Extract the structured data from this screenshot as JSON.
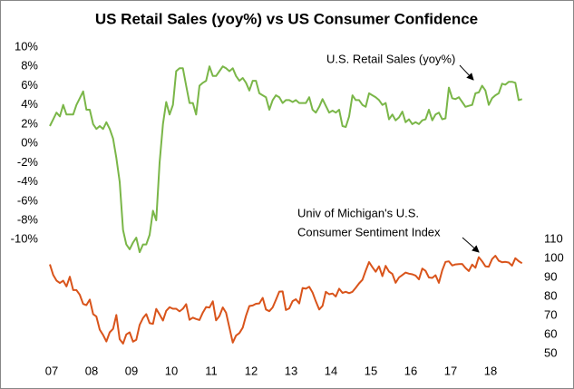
{
  "chart_data": {
    "type": "line",
    "title": "US Retail Sales (yoy%) vs US Consumer Confidence",
    "annotations": [
      "U.S. Retail Sales (yoy%)",
      "Univ of Michigan's U.S.",
      "Consumer Sentiment Index"
    ],
    "x": [
      0,
      1,
      2,
      3,
      4,
      5,
      6,
      7,
      8,
      9,
      10,
      11,
      12,
      13,
      14,
      15,
      16,
      17,
      18,
      19,
      20,
      21,
      22,
      23,
      24,
      25,
      26,
      27,
      28,
      29,
      30,
      31,
      32,
      33,
      34,
      35,
      36,
      37,
      38,
      39,
      40,
      41,
      42,
      43,
      44,
      45,
      46,
      47,
      48,
      49,
      50,
      51,
      52,
      53,
      54,
      55,
      56,
      57,
      58,
      59,
      60,
      61,
      62,
      63,
      64,
      65,
      66,
      67,
      68,
      69,
      70,
      71,
      72,
      73,
      74,
      75,
      76,
      77,
      78,
      79,
      80,
      81,
      82,
      83,
      84,
      85,
      86,
      87,
      88,
      89,
      90,
      91,
      92,
      93,
      94,
      95,
      96,
      97,
      98,
      99,
      100,
      101,
      102,
      103,
      104,
      105,
      106,
      107,
      108,
      109,
      110,
      111,
      112,
      113,
      114,
      115,
      116,
      117,
      118,
      119,
      120,
      121,
      122,
      123,
      124,
      125,
      126,
      127,
      128,
      129,
      130,
      131,
      132,
      133,
      134,
      135,
      136,
      137,
      138,
      139,
      140,
      141,
      142
    ],
    "xlim": [
      0,
      144
    ],
    "xticks": [
      {
        "value": 0,
        "label": "07"
      },
      {
        "value": 12,
        "label": "08"
      },
      {
        "value": 24,
        "label": "09"
      },
      {
        "value": 36,
        "label": "10"
      },
      {
        "value": 48,
        "label": "11"
      },
      {
        "value": 60,
        "label": "12"
      },
      {
        "value": 72,
        "label": "13"
      },
      {
        "value": 84,
        "label": "14"
      },
      {
        "value": 96,
        "label": "15"
      },
      {
        "value": 108,
        "label": "16"
      },
      {
        "value": 120,
        "label": "17"
      },
      {
        "value": 132,
        "label": "18"
      }
    ],
    "ylim": [
      -22.6,
      10
    ],
    "yticks": [
      {
        "value": -10,
        "label": "-10%"
      },
      {
        "value": -8,
        "label": "-8%"
      },
      {
        "value": -6,
        "label": "-6%"
      },
      {
        "value": -4,
        "label": "-4%"
      },
      {
        "value": -2,
        "label": "-2%"
      },
      {
        "value": 0,
        "label": "0%"
      },
      {
        "value": 2,
        "label": "2%"
      },
      {
        "value": 4,
        "label": "4%"
      },
      {
        "value": 6,
        "label": "6%"
      },
      {
        "value": 8,
        "label": "8%"
      },
      {
        "value": 10,
        "label": "10%"
      }
    ],
    "y2lim": [
      46.2,
      211
    ],
    "y2ticks": [
      50,
      60,
      70,
      80,
      90,
      100,
      110
    ],
    "series": [
      {
        "name": "U.S. Retail Sales (yoy%)",
        "color": "#7ab648",
        "values": [
          1.8,
          2.5,
          3.2,
          2.8,
          4.0,
          3.0,
          3.0,
          3.0,
          4.0,
          4.7,
          5.4,
          3.5,
          3.5,
          2.0,
          1.5,
          1.8,
          1.5,
          2.2,
          1.5,
          0.5,
          -1.5,
          -4,
          -9,
          -10.5,
          -11,
          -10.3,
          -9.8,
          -11.3,
          -10.5,
          -10.5,
          -9.5,
          -7,
          -8,
          -2,
          2,
          4.3,
          3.0,
          4.0,
          7.5,
          7.8,
          7.8,
          6,
          4.2,
          4.2,
          3,
          6.0,
          6.3,
          6.5,
          8,
          7,
          7,
          7.5,
          8,
          7.8,
          7.5,
          7.8,
          7,
          6.5,
          6.8,
          6.3,
          5.5,
          6.5,
          6.5,
          5.2,
          5,
          4.8,
          3.5,
          4.5,
          5,
          4.8,
          4.2,
          4.5,
          4.5,
          4.3,
          4.5,
          4.2,
          4.2,
          4.2,
          4.8,
          3.5,
          3.2,
          3.8,
          4.6,
          3.9,
          3.2,
          3.4,
          3.2,
          3.5,
          1.8,
          1.7,
          2.8,
          5.0,
          4.5,
          4.5,
          4.0,
          3.8,
          5.2,
          5.0,
          4.8,
          4.5,
          4.0,
          4.2,
          2.5,
          3.0,
          2.4,
          2.7,
          3.3,
          2.2,
          2.5,
          2.0,
          2.2,
          2.0,
          2.4,
          2.5,
          3.5,
          2.4,
          3.0,
          3.2,
          2.5,
          2.6,
          5.8,
          4.7,
          4.6,
          4.8,
          4.3,
          3.8,
          3.9,
          4.0,
          5.2,
          5.3,
          6.0,
          5.5,
          4.0,
          4.7,
          5.0,
          5.2,
          6.2,
          6.1,
          6.4,
          6.4,
          6.3,
          4.5,
          4.6
        ]
      },
      {
        "name": "Univ of Michigan's U.S. Consumer Sentiment Index",
        "color": "#d9541b",
        "axis": "y2",
        "values": [
          96.9,
          91.3,
          88.4,
          87.1,
          88.3,
          85.3,
          90.4,
          83.4,
          83.4,
          80.9,
          76.1,
          75.5,
          78.4,
          70.8,
          69.5,
          62.6,
          59.8,
          56.4,
          61.2,
          63,
          70.3,
          57.6,
          55.3,
          60.1,
          61.2,
          56.3,
          57.3,
          65.1,
          68.7,
          70.8,
          66,
          65.7,
          73.5,
          70.6,
          67.4,
          72.5,
          74.4,
          73.6,
          73.6,
          72.2,
          73.6,
          76,
          67.8,
          68.9,
          68.2,
          67.7,
          71.6,
          74.5,
          74.2,
          77.5,
          67.5,
          69.8,
          74.3,
          71.5,
          63.7,
          55.8,
          59.5,
          60.8,
          63.7,
          69.9,
          75,
          75.3,
          76.2,
          76.4,
          79.3,
          73.2,
          72.3,
          74.3,
          78.3,
          82.6,
          82.7,
          72.9,
          73.8,
          77.6,
          78.6,
          76.4,
          84.5,
          84.1,
          85.1,
          82.1,
          77.5,
          73.2,
          75.1,
          82.5,
          81.2,
          81.6,
          80,
          84.1,
          81.9,
          82.5,
          81.8,
          82.5,
          84.6,
          86.9,
          88.8,
          93.6,
          98.1,
          95.4,
          93,
          95.9,
          90.7,
          96.1,
          93.1,
          91.9,
          87.2,
          90,
          91.3,
          92.6,
          92,
          91.7,
          91,
          89,
          94.7,
          93.5,
          90,
          89.8,
          91.2,
          87.2,
          93.8,
          98.2,
          98.5,
          96.3,
          96.9,
          97,
          97.1,
          95,
          93.4,
          96.8,
          95.1,
          100.7,
          98.5,
          95.9,
          95.7,
          99.7,
          101.4,
          98.8,
          98,
          98.2,
          97.9,
          96.2,
          100.1,
          98.6,
          97.5
        ]
      }
    ]
  }
}
